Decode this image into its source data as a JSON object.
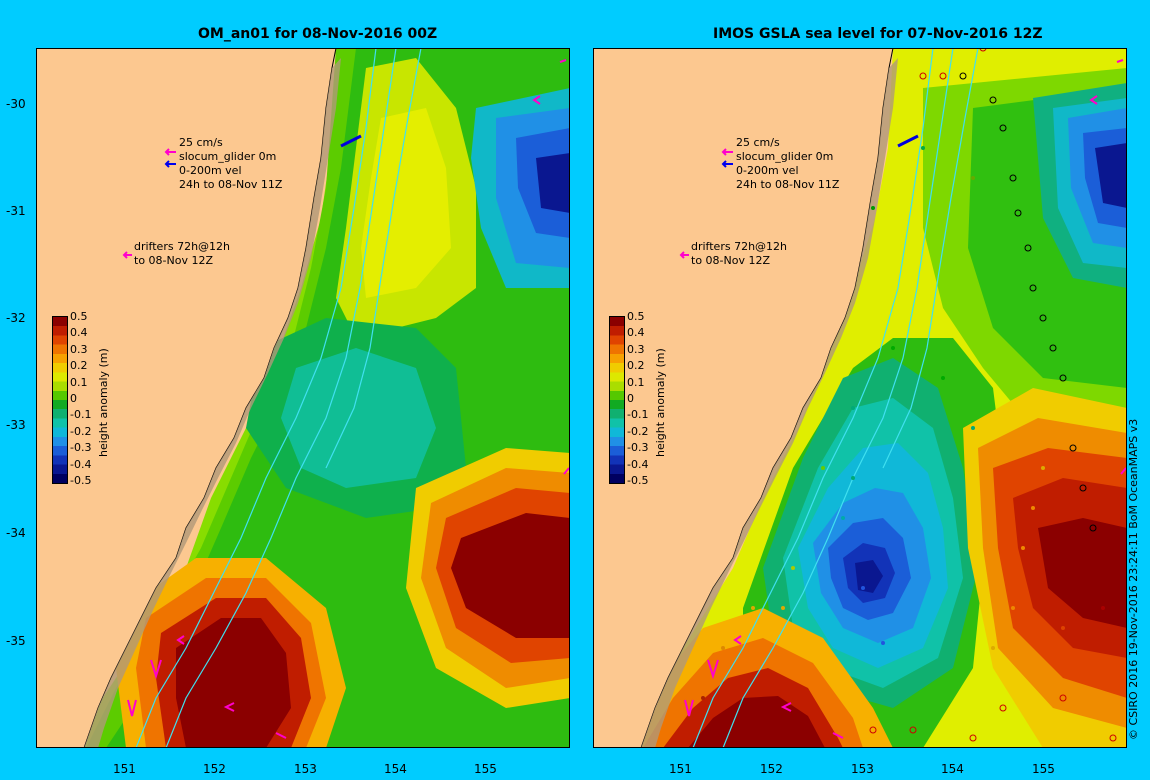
{
  "left_panel": {
    "title": "OM_an01 for 08-Nov-2016 00Z",
    "legend": {
      "vel_scale": "25 cm/s",
      "glider": "slocum_glider 0m",
      "depth_vel": "0-200m vel",
      "window": "24h to 08-Nov 11Z",
      "drifters1": "drifters 72h@12h",
      "drifters2": "to 08-Nov 12Z"
    }
  },
  "right_panel": {
    "title": "IMOS GSLA sea level  for 07-Nov-2016 12Z",
    "legend": {
      "vel_scale": "25 cm/s",
      "glider": "slocum_glider 0m",
      "depth_vel": "0-200m vel",
      "window": "24h to 08-Nov 11Z",
      "drifters1": "drifters 72h@12h",
      "drifters2": "to 08-Nov 12Z"
    }
  },
  "axes": {
    "lon_ticks": [
      "151",
      "152",
      "153",
      "154",
      "155"
    ],
    "lat_ticks": [
      "-30",
      "-31",
      "-32",
      "-33",
      "-34",
      "-35"
    ]
  },
  "colorbar": {
    "label": "height anomaly (m)",
    "ticks": [
      "0.5",
      "0.4",
      "0.3",
      "0.2",
      "0.1",
      "0",
      "-0.1",
      "-0.2",
      "-0.3",
      "-0.4",
      "-0.5"
    ],
    "colors": [
      "#8b0000",
      "#c01d00",
      "#e04400",
      "#ef7400",
      "#f7a100",
      "#f0cc00",
      "#dde800",
      "#aadd00",
      "#55c800",
      "#11aa22",
      "#10b070",
      "#10c2a8",
      "#10b8d8",
      "#2090e6",
      "#1b5ed8",
      "#1233b8",
      "#0a1790",
      "#000060"
    ]
  },
  "credit": "© CSIRO 2016  19-Nov-2016 23:24:11 BoM OceanMAPS v3"
}
